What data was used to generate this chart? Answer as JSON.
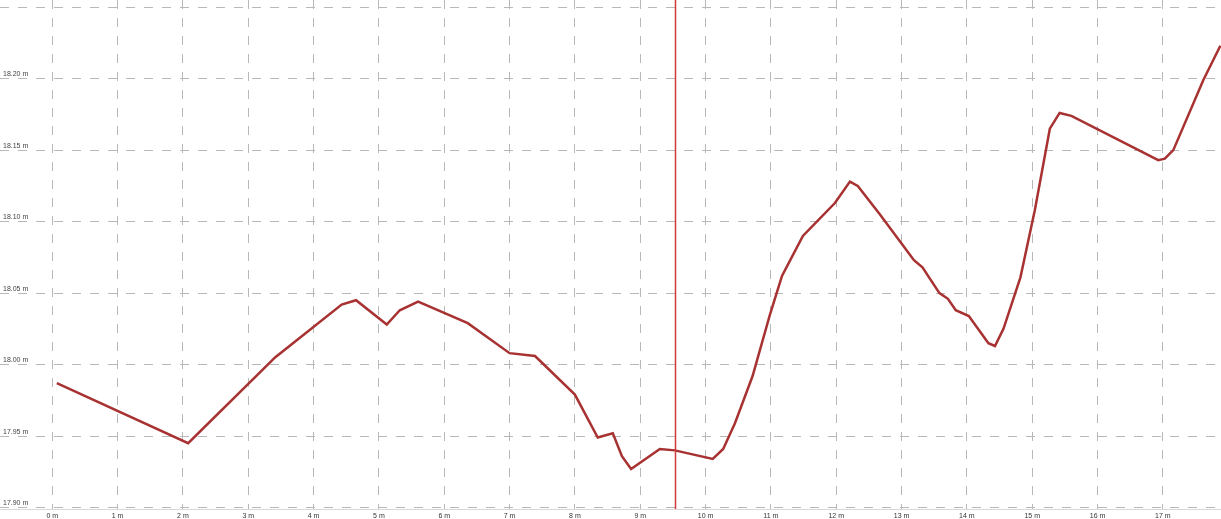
{
  "chart_data": {
    "type": "line",
    "x": [
      0.07,
      2.08,
      3.41,
      4.43,
      4.65,
      5.12,
      5.32,
      5.6,
      6.36,
      7,
      7.39,
      8,
      8.35,
      8.58,
      8.72,
      8.86,
      9.3,
      9.53,
      10.11,
      10.27,
      10.45,
      10.72,
      10.98,
      11.17,
      11.49,
      11.98,
      12.21,
      12.33,
      12.67,
      13.19,
      13.32,
      13.58,
      13.71,
      13.83,
      14.03,
      14.33,
      14.43,
      14.56,
      14.82,
      15.04,
      15.27,
      15.42,
      15.6,
      16.93,
      17.03,
      17.16,
      17.62,
      17.88
    ],
    "series": [
      {
        "color": "#a83232",
        "values": [
          17.987,
          17.945,
          18.005,
          18.042,
          18.045,
          18.028,
          18.038,
          18.044,
          18.029,
          18.008,
          18.006,
          17.979,
          17.949,
          17.952,
          17.936,
          17.927,
          17.941,
          17.94,
          17.934,
          17.941,
          17.959,
          17.992,
          18.034,
          18.062,
          18.09,
          18.113,
          18.128,
          18.125,
          18.105,
          18.073,
          18.068,
          18.05,
          18.046,
          18.038,
          18.034,
          18.015,
          18.013,
          18.025,
          18.061,
          18.108,
          18.165,
          18.176,
          18.174,
          18.143,
          18.144,
          18.15,
          18.199,
          18.223
        ]
      }
    ],
    "xlim": [
      -0.8,
      17.89
    ],
    "ylim": [
      17.899,
      18.255
    ],
    "xticks": [
      {
        "value": 0,
        "label": "0 m"
      },
      {
        "value": 1,
        "label": "1 m"
      },
      {
        "value": 2,
        "label": "2 m"
      },
      {
        "value": 3,
        "label": "3 m"
      },
      {
        "value": 4,
        "label": "4 m"
      },
      {
        "value": 5,
        "label": "5 m"
      },
      {
        "value": 6,
        "label": "6 m"
      },
      {
        "value": 7,
        "label": "7 m"
      },
      {
        "value": 8,
        "label": "8 m"
      },
      {
        "value": 9,
        "label": "9 m"
      },
      {
        "value": 10,
        "label": "10 m"
      },
      {
        "value": 11,
        "label": "11 m"
      },
      {
        "value": 12,
        "label": "12 m"
      },
      {
        "value": 13,
        "label": "13 m"
      },
      {
        "value": 14,
        "label": "14 m"
      },
      {
        "value": 15,
        "label": "15 m"
      },
      {
        "value": 16,
        "label": "16 m"
      },
      {
        "value": 17,
        "label": "17 m"
      }
    ],
    "yticks": [
      {
        "value": 17.9,
        "label": "17.90 m"
      },
      {
        "value": 17.95,
        "label": "17.95 m"
      },
      {
        "value": 18,
        "label": "18.00 m"
      },
      {
        "value": 18.05,
        "label": "18.05 m"
      },
      {
        "value": 18.1,
        "label": "18.10 m"
      },
      {
        "value": 18.15,
        "label": "18.15 m"
      },
      {
        "value": 18.2,
        "label": "18.20 m"
      },
      {
        "value": 18.25,
        "label": null
      }
    ],
    "ref_lines": [
      {
        "axis": "x",
        "value": 9.54,
        "color": "#d03a3a"
      }
    ],
    "grid": true,
    "marker": "none",
    "line_style": "solid"
  }
}
